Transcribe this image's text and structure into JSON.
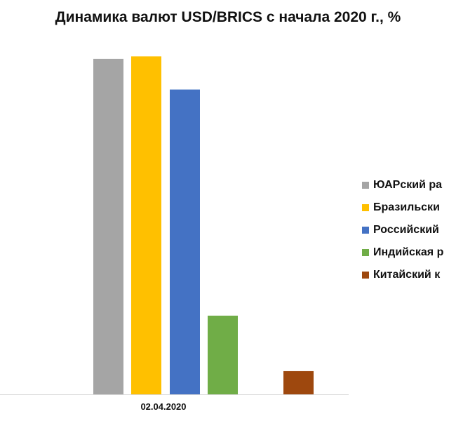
{
  "chart_data": {
    "type": "bar",
    "title": "Динамика валют USD/BRICS с начала 2020 г., %",
    "categories": [
      "02.04.2020"
    ],
    "series": [
      {
        "name": "ЮАРский ра",
        "values": [
          40.5
        ],
        "color": "#A5A5A5"
      },
      {
        "name": "Бразильски",
        "values": [
          40.8
        ],
        "color": "#FFC000"
      },
      {
        "name": "Российский",
        "values": [
          36.8
        ],
        "color": "#4472C4"
      },
      {
        "name": "Индийская р",
        "values": [
          9.5
        ],
        "color": "#70AD47"
      },
      {
        "name": "Китайский к",
        "values": [
          2.8
        ],
        "color": "#9E480E"
      }
    ],
    "ylim": [
      0,
      41
    ],
    "grid": false,
    "legend_position": "right"
  }
}
